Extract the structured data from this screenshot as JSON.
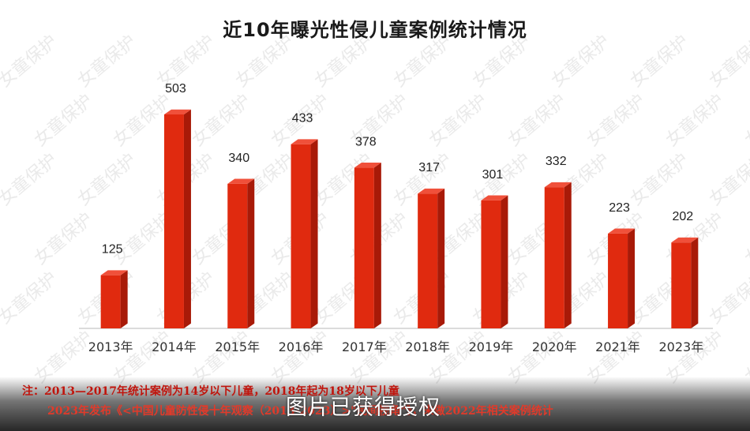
{
  "watermark": "女童保护",
  "chart_data": {
    "type": "bar",
    "title": "近10年曝光性侵儿童案例统计情况",
    "categories": [
      "2013年",
      "2014年",
      "2015年",
      "2016年",
      "2017年",
      "2018年",
      "2019年",
      "2020年",
      "2021年",
      "2023年"
    ],
    "values": [
      125,
      503,
      340,
      433,
      378,
      317,
      301,
      332,
      223,
      202
    ],
    "ylim": [
      0,
      530
    ],
    "grid": false,
    "legend": "none",
    "bar_color": "#e02a0f",
    "bar_side_color": "#a81a08",
    "bar_top_color": "#f0503a",
    "notes": [
      "注：2013—2017年统计案例为14岁以下儿童，2018年起为18岁以下儿童",
      "2023年发布《<中国儿童防性侵十年观察（2013-2023）>\"民间视角\"》，未做2022年相关案例统计"
    ],
    "image_credit": "图片已获得授权"
  }
}
